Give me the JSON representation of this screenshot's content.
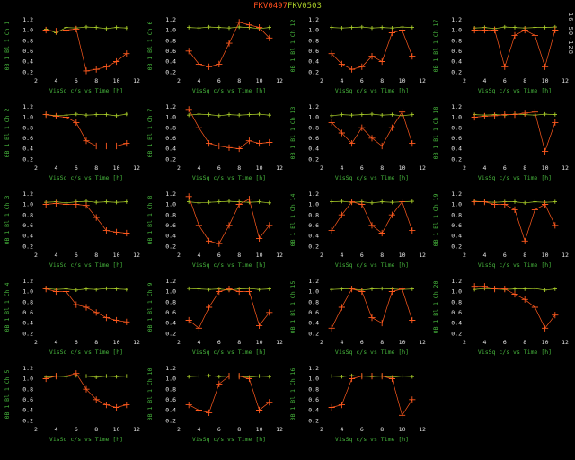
{
  "title": {
    "part1": "FKV0497",
    "part2": "FKV0503"
  },
  "side_text": "16-50-128",
  "colors": {
    "background": "#000000",
    "title_part1": "#ff4f1e",
    "title_part2": "#a8cc28",
    "series_orange": "#ff5a1e",
    "series_green": "#a8cc28",
    "axis_label": "#46b43c",
    "tick": "#e6e6e6",
    "side_text": "#c8c8c8"
  },
  "chart_data": {
    "type": "line",
    "layout": {
      "columns": 4,
      "rows": 5,
      "order": "column-major",
      "grid": false,
      "legend": "none"
    },
    "x": [
      3,
      4,
      5,
      6,
      7,
      8,
      9,
      10,
      11
    ],
    "xlabel": "VisSq c/s  vs Time [h]",
    "ylabel_prefix": "0B 1 Bl 1 Ch",
    "xlim": [
      2,
      12
    ],
    "ylim": [
      0.15,
      1.25
    ],
    "xticks": [
      "2",
      "4",
      "6",
      "8",
      "10",
      "12"
    ],
    "yticks": [
      "0.2",
      "0.4",
      "0.6",
      "0.8",
      "1.0",
      "1.2"
    ],
    "series_names": [
      "FKV0497",
      "FKV0503"
    ],
    "panels": [
      {
        "channel": 1,
        "ylabel": "0B 1 Bl 1 Ch 1",
        "orange": [
          1.0,
          0.98,
          1.0,
          1.02,
          0.22,
          0.25,
          0.3,
          0.4,
          0.55
        ],
        "green": [
          1.02,
          0.95,
          1.05,
          1.04,
          1.06,
          1.05,
          1.03,
          1.05,
          1.04
        ]
      },
      {
        "channel": 2,
        "ylabel": "0B 1 Bl 1 Ch 2",
        "orange": [
          1.05,
          1.02,
          1.0,
          0.9,
          0.55,
          0.45,
          0.45,
          0.45,
          0.5
        ],
        "green": [
          1.05,
          1.03,
          1.04,
          1.06,
          1.04,
          1.05,
          1.05,
          1.03,
          1.06
        ]
      },
      {
        "channel": 3,
        "ylabel": "0B 1 Bl 1 Ch 3",
        "orange": [
          1.0,
          1.02,
          1.0,
          1.0,
          0.98,
          0.75,
          0.5,
          0.47,
          0.45
        ],
        "green": [
          1.04,
          1.05,
          1.03,
          1.05,
          1.06,
          1.04,
          1.05,
          1.04,
          1.05
        ]
      },
      {
        "channel": 4,
        "ylabel": "0B 1 Bl 1 Ch 4",
        "orange": [
          1.05,
          1.0,
          1.0,
          0.75,
          0.7,
          0.6,
          0.5,
          0.45,
          0.42
        ],
        "green": [
          1.06,
          1.04,
          1.05,
          1.03,
          1.05,
          1.04,
          1.06,
          1.05,
          1.04
        ]
      },
      {
        "channel": 5,
        "ylabel": "0B 1 Bl 1 Ch 5",
        "orange": [
          1.0,
          1.05,
          1.05,
          1.1,
          0.8,
          0.6,
          0.5,
          0.45,
          0.5
        ],
        "green": [
          1.03,
          1.05,
          1.04,
          1.06,
          1.05,
          1.03,
          1.05,
          1.04,
          1.05
        ]
      },
      {
        "channel": 6,
        "ylabel": "0B 1 Bl 1 Ch 6",
        "orange": [
          0.6,
          0.35,
          0.3,
          0.35,
          0.75,
          1.15,
          1.1,
          1.05,
          0.85
        ],
        "green": [
          1.05,
          1.04,
          1.06,
          1.05,
          1.04,
          1.06,
          1.05,
          1.03,
          1.05
        ]
      },
      {
        "channel": 7,
        "ylabel": "0B 1 Bl 1 Ch 7",
        "orange": [
          1.15,
          0.8,
          0.5,
          0.45,
          0.42,
          0.4,
          0.55,
          0.5,
          0.52
        ],
        "green": [
          1.04,
          1.06,
          1.05,
          1.03,
          1.05,
          1.04,
          1.05,
          1.06,
          1.04
        ]
      },
      {
        "channel": 8,
        "ylabel": "0B 1 Bl 1 Ch 8",
        "orange": [
          1.15,
          0.6,
          0.3,
          0.25,
          0.6,
          1.0,
          1.1,
          0.35,
          0.6
        ],
        "green": [
          1.05,
          1.03,
          1.04,
          1.05,
          1.06,
          1.05,
          1.04,
          1.05,
          1.03
        ]
      },
      {
        "channel": 9,
        "ylabel": "0B 1 Bl 1 Ch 9",
        "orange": [
          0.45,
          0.3,
          0.7,
          1.0,
          1.05,
          1.0,
          1.0,
          0.35,
          0.6
        ],
        "green": [
          1.06,
          1.05,
          1.04,
          1.05,
          1.03,
          1.05,
          1.06,
          1.04,
          1.05
        ]
      },
      {
        "channel": 10,
        "ylabel": "0B 1 Bl 1 Ch 10",
        "orange": [
          0.5,
          0.4,
          0.35,
          0.9,
          1.05,
          1.05,
          1.0,
          0.4,
          0.55
        ],
        "green": [
          1.04,
          1.05,
          1.06,
          1.04,
          1.05,
          1.05,
          1.03,
          1.05,
          1.04
        ]
      },
      {
        "channel": 12,
        "ylabel": "0B 1 Bl 1 Ch 12",
        "orange": [
          0.55,
          0.35,
          0.25,
          0.3,
          0.5,
          0.4,
          0.95,
          1.0,
          0.5
        ],
        "green": [
          1.05,
          1.04,
          1.05,
          1.06,
          1.04,
          1.05,
          1.04,
          1.06,
          1.05
        ]
      },
      {
        "channel": 13,
        "ylabel": "0B 1 Bl 1 Ch 13",
        "orange": [
          0.9,
          0.7,
          0.5,
          0.8,
          0.6,
          0.45,
          0.8,
          1.1,
          0.5
        ],
        "green": [
          1.03,
          1.05,
          1.04,
          1.05,
          1.06,
          1.04,
          1.05,
          1.03,
          1.05
        ]
      },
      {
        "channel": 14,
        "ylabel": "0B 1 Bl 1 Ch 14",
        "orange": [
          0.5,
          0.8,
          1.05,
          1.0,
          0.6,
          0.45,
          0.8,
          1.05,
          0.5
        ],
        "green": [
          1.05,
          1.06,
          1.04,
          1.05,
          1.03,
          1.05,
          1.04,
          1.05,
          1.06
        ]
      },
      {
        "channel": 15,
        "ylabel": "0B 1 Bl 1 Ch 15",
        "orange": [
          0.3,
          0.7,
          1.05,
          1.0,
          0.5,
          0.4,
          1.0,
          1.05,
          0.45
        ],
        "green": [
          1.04,
          1.05,
          1.05,
          1.03,
          1.05,
          1.06,
          1.05,
          1.04,
          1.05
        ]
      },
      {
        "channel": 16,
        "ylabel": "0B 1 Bl 1 Ch 16",
        "orange": [
          0.45,
          0.5,
          1.0,
          1.05,
          1.05,
          1.05,
          1.0,
          0.3,
          0.6
        ],
        "green": [
          1.05,
          1.04,
          1.06,
          1.05,
          1.04,
          1.05,
          1.03,
          1.05,
          1.04
        ]
      },
      {
        "channel": 17,
        "ylabel": "0B 1 Bl 1 Ch 17",
        "orange": [
          1.0,
          1.0,
          1.0,
          0.3,
          0.9,
          1.0,
          0.9,
          0.3,
          1.0
        ],
        "green": [
          1.04,
          1.05,
          1.03,
          1.06,
          1.05,
          1.04,
          1.05,
          1.05,
          1.06
        ]
      },
      {
        "channel": 18,
        "ylabel": "0B 1 Bl 1 Ch 18",
        "orange": [
          1.0,
          1.02,
          1.03,
          1.05,
          1.05,
          1.08,
          1.1,
          0.35,
          0.9
        ],
        "green": [
          1.05,
          1.04,
          1.05,
          1.04,
          1.06,
          1.05,
          1.04,
          1.06,
          1.05
        ]
      },
      {
        "channel": 19,
        "ylabel": "0B 1 Bl 1 Ch 19",
        "orange": [
          1.05,
          1.05,
          1.0,
          1.0,
          0.9,
          0.3,
          0.9,
          1.0,
          0.6
        ],
        "green": [
          1.06,
          1.05,
          1.04,
          1.05,
          1.05,
          1.03,
          1.05,
          1.04,
          1.05
        ]
      },
      {
        "channel": 20,
        "ylabel": "0B 1 Bl 1 Ch 20",
        "orange": [
          1.1,
          1.1,
          1.05,
          1.05,
          0.95,
          0.85,
          0.7,
          0.3,
          0.55
        ],
        "green": [
          1.04,
          1.06,
          1.05,
          1.04,
          1.05,
          1.05,
          1.06,
          1.03,
          1.05
        ]
      }
    ]
  }
}
